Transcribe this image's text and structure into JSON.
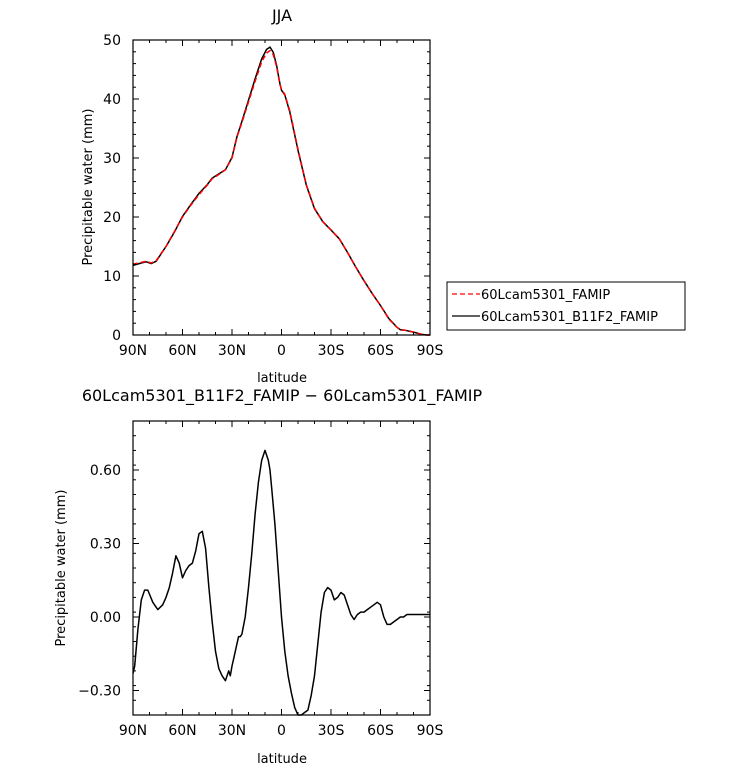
{
  "chart_data": [
    {
      "type": "line",
      "title": "JJA",
      "xlabel": "latitude",
      "ylabel": "Precipitable water (mm)",
      "xlim": [
        90,
        -90
      ],
      "ylim": [
        0,
        50
      ],
      "xticks": [
        90,
        60,
        30,
        0,
        -30,
        -60,
        -90
      ],
      "xtick_labels": [
        "90N",
        "60N",
        "30N",
        "0",
        "30S",
        "60S",
        "90S"
      ],
      "yticks": [
        0,
        10,
        20,
        30,
        40,
        50
      ],
      "ytick_labels": [
        "0",
        "10",
        "20",
        "30",
        "40",
        "50"
      ],
      "legend_position": "right",
      "series": [
        {
          "name": "60Lcam5301_FAMIP",
          "color": "#ff0000",
          "style": "dashed",
          "x": [
            90,
            85,
            82,
            79,
            76,
            70,
            65,
            60,
            55,
            50,
            45,
            42,
            38,
            34,
            30,
            27,
            24,
            20,
            16,
            12,
            9,
            7,
            5,
            3,
            1,
            0,
            -2,
            -5,
            -10,
            -15,
            -20,
            -25,
            -30,
            -35,
            -40,
            -45,
            -50,
            -55,
            -60,
            -65,
            -70,
            -72,
            -75,
            -80,
            -85,
            -88,
            -90
          ],
          "values": [
            12.0,
            12.3,
            12.5,
            12.2,
            12.6,
            15.0,
            17.5,
            20.0,
            22.0,
            23.8,
            25.4,
            26.5,
            27.2,
            28.0,
            30.0,
            33.5,
            36.0,
            39.5,
            43.0,
            46.3,
            47.8,
            48.2,
            47.5,
            45.5,
            42.5,
            41.6,
            40.8,
            38.0,
            31.5,
            25.5,
            21.5,
            19.2,
            17.8,
            16.3,
            14.0,
            11.5,
            9.2,
            7.0,
            5.0,
            2.7,
            1.3,
            0.9,
            0.8,
            0.5,
            0.1,
            0.0,
            0.0
          ]
        },
        {
          "name": "60Lcam5301_B11F2_FAMIP",
          "color": "#000000",
          "style": "solid",
          "x": [
            90,
            85,
            82,
            79,
            76,
            70,
            65,
            60,
            55,
            50,
            45,
            42,
            38,
            34,
            30,
            27,
            24,
            20,
            16,
            12,
            9,
            7,
            5,
            3,
            1,
            0,
            -2,
            -5,
            -10,
            -15,
            -20,
            -25,
            -30,
            -35,
            -40,
            -45,
            -50,
            -55,
            -60,
            -65,
            -70,
            -72,
            -75,
            -80,
            -85,
            -88,
            -90
          ],
          "values": [
            11.8,
            12.2,
            12.4,
            12.1,
            12.5,
            15.0,
            17.4,
            20.1,
            22.1,
            24.0,
            25.5,
            26.6,
            27.3,
            28.0,
            30.1,
            33.6,
            36.2,
            39.8,
            43.4,
            46.8,
            48.4,
            48.8,
            47.9,
            45.7,
            42.6,
            41.5,
            40.7,
            37.8,
            31.3,
            25.4,
            21.4,
            19.2,
            17.8,
            16.3,
            14.0,
            11.5,
            9.2,
            7.0,
            5.0,
            2.8,
            1.3,
            0.9,
            0.8,
            0.5,
            0.1,
            0.0,
            0.0
          ]
        }
      ]
    },
    {
      "type": "line",
      "title": "60Lcam5301_B11F2_FAMIP − 60Lcam5301_FAMIP",
      "xlabel": "latitude",
      "ylabel": "Precipitable water (mm)",
      "xlim": [
        90,
        -90
      ],
      "ylim": [
        -0.4,
        0.8
      ],
      "xticks": [
        90,
        60,
        30,
        0,
        -30,
        -60,
        -90
      ],
      "xtick_labels": [
        "90N",
        "60N",
        "30N",
        "0",
        "30S",
        "60S",
        "90S"
      ],
      "yticks": [
        -0.3,
        0.0,
        0.3,
        0.6
      ],
      "ytick_labels": [
        "−0.30",
        "0.00",
        "0.30",
        "0.60"
      ],
      "series": [
        {
          "color": "#000000",
          "style": "solid",
          "x": [
            90,
            89,
            87,
            85,
            83,
            81,
            78,
            75,
            72,
            70,
            68,
            66,
            64,
            62,
            60,
            58,
            56,
            54,
            52,
            50,
            48,
            46,
            44,
            42,
            40,
            38,
            36,
            34,
            32,
            31,
            30,
            29,
            28,
            27,
            26,
            25,
            24,
            22,
            20,
            18,
            16,
            14,
            12,
            10,
            8,
            7,
            6,
            4,
            2,
            0,
            -2,
            -4,
            -6,
            -8,
            -10,
            -12,
            -14,
            -16,
            -18,
            -20,
            -22,
            -24,
            -26,
            -28,
            -30,
            -32,
            -34,
            -36,
            -38,
            -40,
            -42,
            -44,
            -46,
            -48,
            -50,
            -52,
            -54,
            -56,
            -58,
            -60,
            -62,
            -64,
            -66,
            -68,
            -70,
            -72,
            -74,
            -76,
            -78,
            -80,
            -83,
            -86,
            -88,
            -90
          ],
          "values": [
            -0.23,
            -0.2,
            -0.05,
            0.07,
            0.11,
            0.11,
            0.06,
            0.03,
            0.05,
            0.08,
            0.12,
            0.18,
            0.25,
            0.22,
            0.16,
            0.19,
            0.21,
            0.22,
            0.27,
            0.34,
            0.35,
            0.28,
            0.12,
            -0.02,
            -0.14,
            -0.21,
            -0.24,
            -0.26,
            -0.22,
            -0.24,
            -0.2,
            -0.17,
            -0.14,
            -0.11,
            -0.08,
            -0.08,
            -0.07,
            0.0,
            0.12,
            0.26,
            0.42,
            0.55,
            0.64,
            0.68,
            0.64,
            0.6,
            0.53,
            0.38,
            0.19,
            0.0,
            -0.14,
            -0.24,
            -0.31,
            -0.37,
            -0.4,
            -0.4,
            -0.39,
            -0.38,
            -0.32,
            -0.24,
            -0.11,
            0.02,
            0.1,
            0.12,
            0.11,
            0.07,
            0.08,
            0.1,
            0.09,
            0.05,
            0.01,
            -0.01,
            0.01,
            0.02,
            0.02,
            0.03,
            0.04,
            0.05,
            0.06,
            0.05,
            0.0,
            -0.03,
            -0.03,
            -0.02,
            -0.01,
            0.0,
            0.0,
            0.01,
            0.01,
            0.01,
            0.01,
            0.01,
            0.01,
            0.01
          ]
        }
      ]
    }
  ]
}
